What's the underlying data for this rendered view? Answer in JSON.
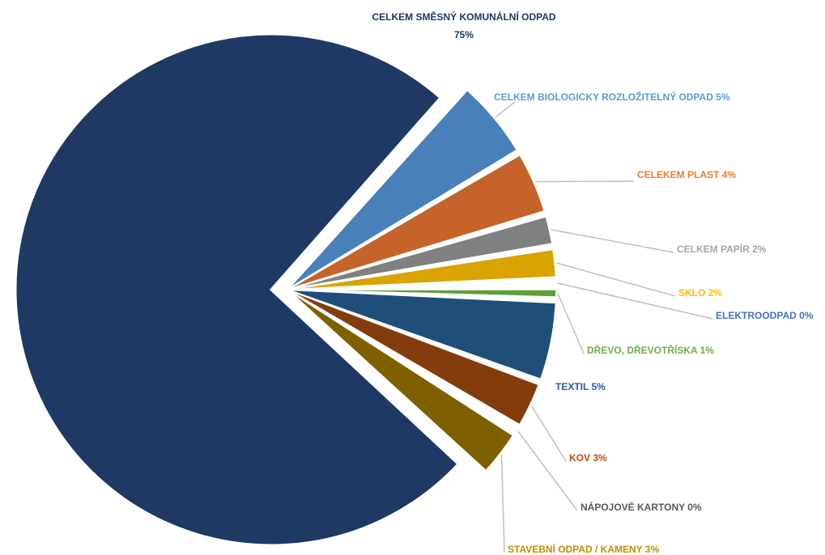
{
  "chart_data": {
    "type": "pie",
    "title": "",
    "slices": [
      {
        "label": "CELKEM SMĚSNÝ KOMUNÁLNÍ ODPAD",
        "value_label": "75%",
        "value": 75,
        "color": "#1f3864",
        "label_color": "#1f3864"
      },
      {
        "label": "CELKEM BIOLOGICKY ROZLOŽITELNÝ ODPAD 5%",
        "value": 5,
        "color": "#4a80b9",
        "label_color": "#5b9bd5"
      },
      {
        "label": "CELEKEM PLAST 4%",
        "value": 4,
        "color": "#c5632a",
        "label_color": "#ed7d31"
      },
      {
        "label": "CELKEM PAPÍR 2%",
        "value": 2,
        "color": "#808080",
        "label_color": "#a5a5a5"
      },
      {
        "label": "SKLO 2%",
        "value": 2,
        "color": "#d9a300",
        "label_color": "#ffc000"
      },
      {
        "label": "ELEKTROODPAD 0%",
        "value": 0.4,
        "color": "#3f6fc6",
        "label_color": "#4472c4"
      },
      {
        "label": "DŘEVO, DŘEVOTŘÍSKA 1%",
        "value": 0.8,
        "color": "#5e9f3a",
        "label_color": "#70ad47"
      },
      {
        "label": "TEXTIL 5%",
        "value": 5,
        "color": "#1f4e79",
        "label_color": "#2e5c9e"
      },
      {
        "label": "KOV 3%",
        "value": 3,
        "color": "#843c0c",
        "label_color": "#b4511b"
      },
      {
        "label": "NÁPOJOVÉ KARTONY 0%",
        "value": 0.4,
        "color": "#595959",
        "label_color": "#595959"
      },
      {
        "label": "STAVEBNÍ ODPAD / KAMENY 3%",
        "value": 3,
        "color": "#7f6000",
        "label_color": "#bf8f00"
      }
    ]
  }
}
